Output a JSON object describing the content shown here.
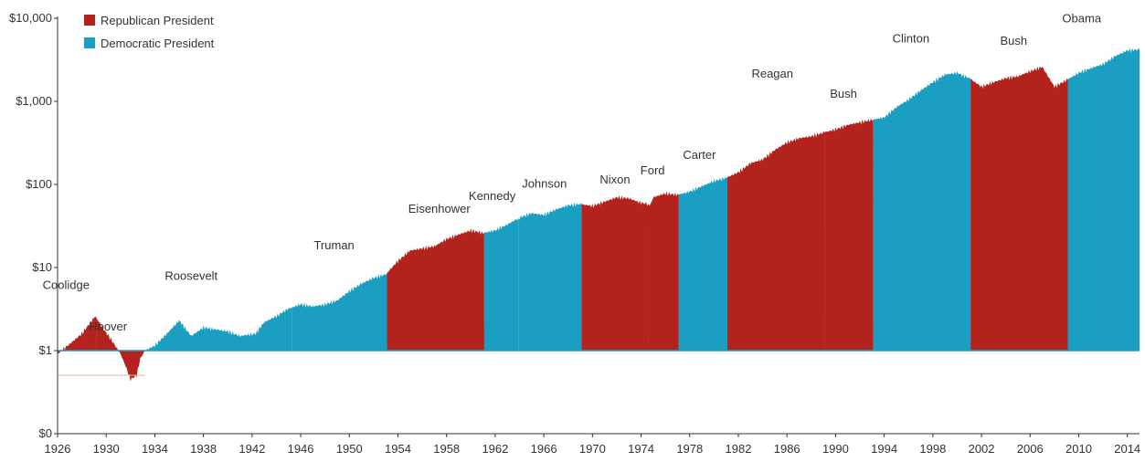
{
  "colors": {
    "republican": "#B3221D",
    "democratic": "#1A9EC2",
    "axis": "#333333",
    "baseline": "#999999"
  },
  "legend": {
    "republican_label": "Republican President",
    "democratic_label": "Democratic President"
  },
  "chart_data": {
    "type": "area",
    "title": "",
    "xlabel": "",
    "ylabel": "",
    "y_scale": "log",
    "baseline": 1,
    "xlim": [
      1926,
      2015
    ],
    "y_ticks": [
      {
        "value": 0.25,
        "label": "$0"
      },
      {
        "value": 1,
        "label": "$1"
      },
      {
        "value": 10,
        "label": "$10"
      },
      {
        "value": 100,
        "label": "$100"
      },
      {
        "value": 1000,
        "label": "$1,000"
      },
      {
        "value": 10000,
        "label": "$10,000"
      }
    ],
    "x_ticks": [
      1926,
      1930,
      1934,
      1938,
      1942,
      1946,
      1950,
      1954,
      1958,
      1962,
      1966,
      1970,
      1974,
      1978,
      1982,
      1986,
      1990,
      1994,
      1998,
      2002,
      2006,
      2010,
      2014
    ],
    "legend_position": "top-left",
    "presidents": [
      {
        "name": "Coolidge",
        "party": "R",
        "start": 1926.0,
        "end": 1929.2
      },
      {
        "name": "Hoover",
        "party": "R",
        "start": 1929.2,
        "end": 1933.2
      },
      {
        "name": "Roosevelt",
        "party": "D",
        "start": 1933.2,
        "end": 1945.3
      },
      {
        "name": "Truman",
        "party": "D",
        "start": 1945.3,
        "end": 1953.1
      },
      {
        "name": "Eisenhower",
        "party": "R",
        "start": 1953.1,
        "end": 1961.1
      },
      {
        "name": "Kennedy",
        "party": "D",
        "start": 1961.1,
        "end": 1963.9
      },
      {
        "name": "Johnson",
        "party": "D",
        "start": 1963.9,
        "end": 1969.1
      },
      {
        "name": "Nixon",
        "party": "R",
        "start": 1969.1,
        "end": 1974.6
      },
      {
        "name": "Ford",
        "party": "R",
        "start": 1974.6,
        "end": 1977.1
      },
      {
        "name": "Carter",
        "party": "D",
        "start": 1977.1,
        "end": 1981.1
      },
      {
        "name": "Reagan",
        "party": "R",
        "start": 1981.1,
        "end": 1989.1
      },
      {
        "name": "Bush",
        "party": "R",
        "start": 1989.1,
        "end": 1993.1
      },
      {
        "name": "Clinton",
        "party": "D",
        "start": 1993.1,
        "end": 2001.1
      },
      {
        "name": "Bush",
        "party": "R",
        "start": 2001.1,
        "end": 2009.1
      },
      {
        "name": "Obama",
        "party": "D",
        "start": 2009.1,
        "end": 2015.0
      }
    ],
    "series": [
      {
        "x": [
          1926,
          1927,
          1928,
          1929.1,
          1929.8,
          1930.5,
          1931.2,
          1931.6,
          1932.0,
          1932.5,
          1932.8,
          1933.2,
          1934,
          1935,
          1936,
          1937,
          1938,
          1939,
          1940,
          1941,
          1942.3,
          1943,
          1944,
          1945,
          1946,
          1947,
          1948,
          1949,
          1950,
          1951,
          1952,
          1953,
          1954,
          1955,
          1956,
          1957,
          1958,
          1959,
          1960,
          1961,
          1962,
          1963,
          1964,
          1965,
          1966,
          1967,
          1968,
          1969,
          1970,
          1971,
          1972,
          1973,
          1974,
          1974.8,
          1975,
          1976,
          1977,
          1978,
          1979,
          1980,
          1981,
          1982,
          1983,
          1984,
          1985,
          1986,
          1987,
          1988,
          1989,
          1990,
          1991,
          1992,
          1993,
          1994,
          1995,
          1996,
          1997,
          1998,
          1999,
          2000,
          2001,
          2002,
          2003,
          2004,
          2005,
          2006,
          2007,
          2008,
          2009,
          2010,
          2011,
          2012,
          2013,
          2014,
          2015
        ],
        "values": [
          0.92,
          1.2,
          1.6,
          2.6,
          1.8,
          1.3,
          0.9,
          0.65,
          0.45,
          0.5,
          0.8,
          1.0,
          1.15,
          1.6,
          2.3,
          1.5,
          1.9,
          1.8,
          1.7,
          1.5,
          1.6,
          2.2,
          2.6,
          3.2,
          3.6,
          3.4,
          3.6,
          4.0,
          5.2,
          6.4,
          7.5,
          8.3,
          12,
          16,
          17,
          18,
          22,
          25,
          28,
          26,
          28,
          33,
          40,
          45,
          43,
          50,
          56,
          58,
          55,
          62,
          70,
          68,
          60,
          58,
          70,
          78,
          75,
          82,
          95,
          110,
          120,
          140,
          180,
          200,
          260,
          320,
          360,
          380,
          420,
          460,
          520,
          560,
          600,
          640,
          850,
          1050,
          1350,
          1700,
          2100,
          2200,
          1900,
          1500,
          1700,
          1900,
          2000,
          2300,
          2600,
          1500,
          1800,
          2200,
          2500,
          2800,
          3500,
          4100,
          4200
        ]
      }
    ]
  }
}
